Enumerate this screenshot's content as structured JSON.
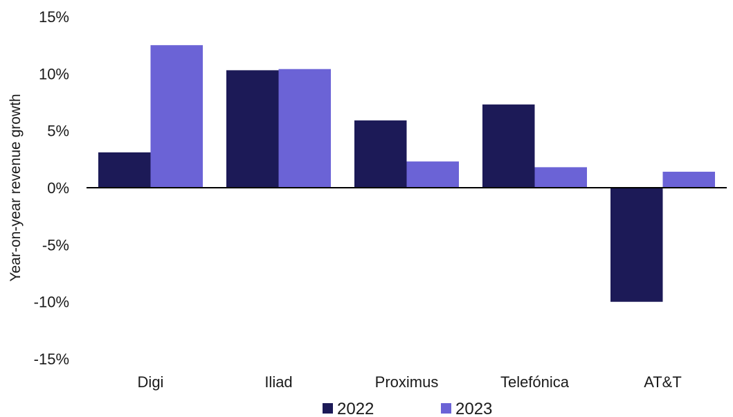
{
  "chart_data": {
    "type": "bar",
    "title": "",
    "xlabel": "",
    "ylabel": "Year-on-year revenue growth",
    "categories": [
      "Digi",
      "Iliad",
      "Proximus",
      "Telefónica",
      "AT&T"
    ],
    "series": [
      {
        "name": "2022",
        "color": "#1c1a57",
        "values": [
          3.1,
          10.3,
          5.9,
          7.3,
          -10.0
        ]
      },
      {
        "name": "2023",
        "color": "#6b63d6",
        "values": [
          12.5,
          10.4,
          2.3,
          1.8,
          1.4
        ]
      }
    ],
    "ylim": [
      -15,
      15
    ],
    "yticks": [
      15,
      10,
      5,
      0,
      -5,
      -10,
      -15
    ],
    "ytick_labels": [
      "15%",
      "10%",
      "5%",
      "0%",
      "-5%",
      "-10%",
      "-15%"
    ],
    "grid": false,
    "legend_position": "bottom"
  }
}
